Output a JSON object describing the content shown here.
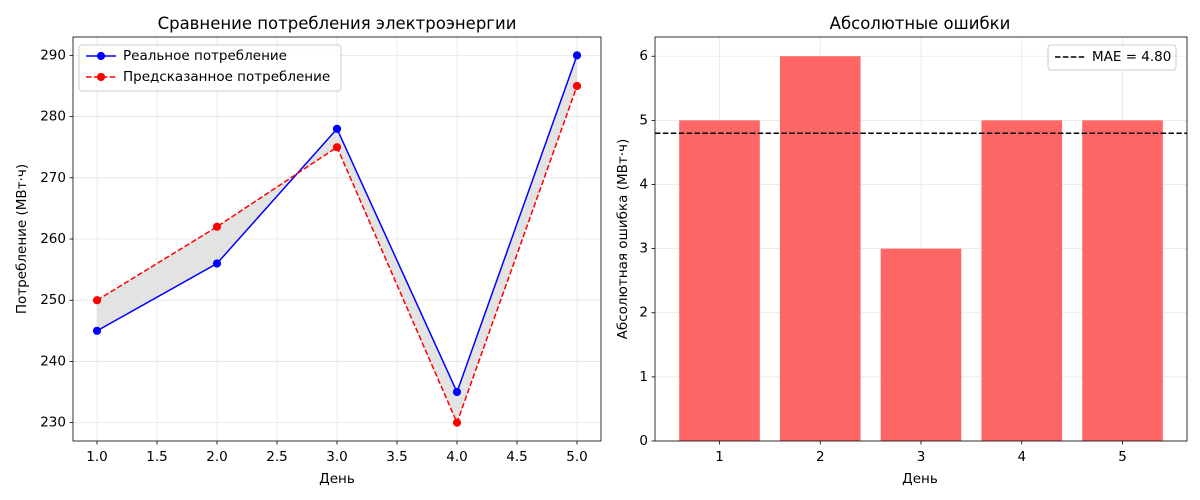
{
  "chart_data": [
    {
      "type": "line",
      "title": "Сравнение потребления электроэнергии",
      "xlabel": "День",
      "ylabel": "Потребление (МВт·ч)",
      "x": [
        1,
        2,
        3,
        4,
        5
      ],
      "series": [
        {
          "name": "Реальное потребление",
          "values": [
            245,
            256,
            278,
            235,
            290
          ],
          "color": "#0000ff",
          "linestyle": "solid",
          "marker": "circle"
        },
        {
          "name": "Предсказанное потребление",
          "values": [
            250,
            262,
            275,
            230,
            285
          ],
          "color": "#ff0000",
          "linestyle": "dashed",
          "marker": "circle"
        }
      ],
      "fill_between_series": {
        "color": "#e3e3e3"
      },
      "xlim": [
        0.8,
        5.2
      ],
      "ylim": [
        227,
        293
      ],
      "xticks": [
        1.0,
        1.5,
        2.0,
        2.5,
        3.0,
        3.5,
        4.0,
        4.5,
        5.0
      ],
      "xtick_labels": [
        "1.0",
        "1.5",
        "2.0",
        "2.5",
        "3.0",
        "3.5",
        "4.0",
        "4.5",
        "5.0"
      ],
      "yticks": [
        230,
        240,
        250,
        260,
        270,
        280,
        290
      ],
      "ytick_labels": [
        "230",
        "240",
        "250",
        "260",
        "270",
        "280",
        "290"
      ],
      "grid": true,
      "legend": "top-left"
    },
    {
      "type": "bar",
      "title": "Абсолютные ошибки",
      "xlabel": "День",
      "ylabel": "Абсолютная ошибка (МВт·ч)",
      "categories": [
        "1",
        "2",
        "3",
        "4",
        "5"
      ],
      "values": [
        5,
        6,
        3,
        5,
        5
      ],
      "color": "#ff6666",
      "reference_line": {
        "label": "MAE = 4.80",
        "value": 4.8,
        "color": "#000000",
        "linestyle": "dashed"
      },
      "xlim": [
        0.36,
        5.64
      ],
      "ylim": [
        0,
        6.3
      ],
      "yticks": [
        0,
        1,
        2,
        3,
        4,
        5,
        6
      ],
      "ytick_labels": [
        "0",
        "1",
        "2",
        "3",
        "4",
        "5",
        "6"
      ],
      "grid": true,
      "legend": "top-right"
    }
  ]
}
